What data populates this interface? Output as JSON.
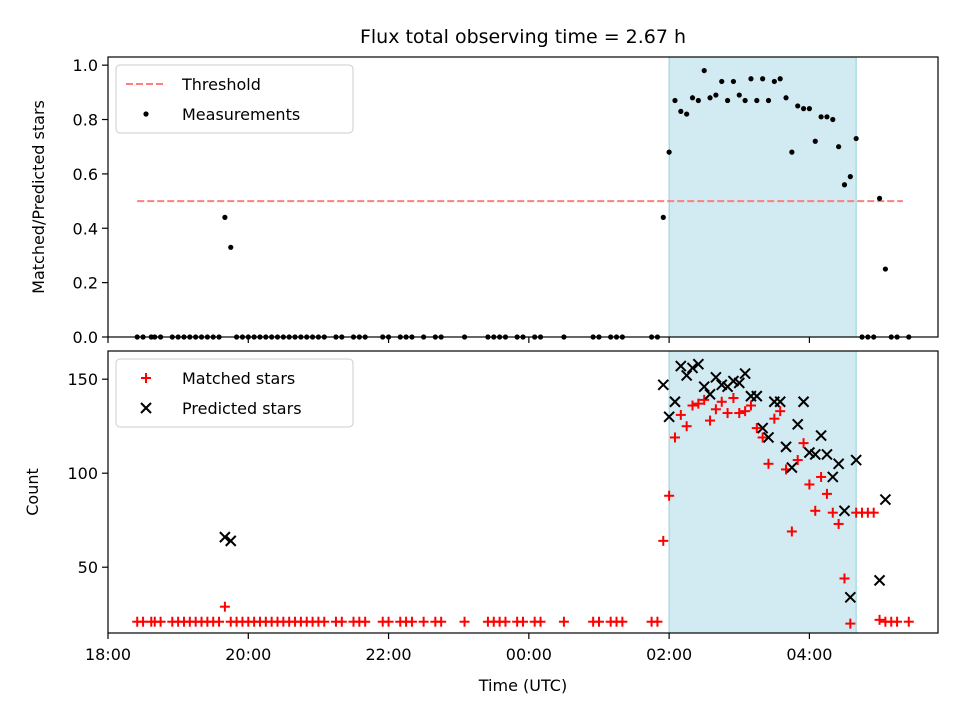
{
  "chart_data": [
    {
      "type": "scatter",
      "title": "Flux total observing time = 2.67 h",
      "ylabel": "Matched/Predicted stars",
      "xlabel": "",
      "xlim": [
        "18:00",
        "05:50"
      ],
      "ylim": [
        0,
        1.03
      ],
      "x_tick_labels": [],
      "y_ticks": [
        0.0,
        0.2,
        0.4,
        0.6,
        0.8,
        1.0
      ],
      "y_tick_labels": [
        "0.0",
        "0.2",
        "0.4",
        "0.6",
        "0.8",
        "1.0"
      ],
      "shaded_region": {
        "from": "02:00",
        "to": "04:40",
        "color": "#add8e6"
      },
      "legend": {
        "position": "upper-left",
        "entries": [
          "Threshold",
          "Measurements"
        ]
      },
      "threshold": {
        "name": "Threshold",
        "y": 0.5,
        "from": "18:25",
        "to": "05:20",
        "color": "#ff7f7f"
      },
      "series": [
        {
          "name": "Measurements",
          "color": "#000000",
          "points": [
            [
              "18:25",
              0
            ],
            [
              "18:30",
              0
            ],
            [
              "18:37",
              0
            ],
            [
              "18:40",
              0
            ],
            [
              "18:45",
              0
            ],
            [
              "18:55",
              0
            ],
            [
              "19:00",
              0
            ],
            [
              "19:05",
              0
            ],
            [
              "19:10",
              0
            ],
            [
              "19:15",
              0
            ],
            [
              "19:20",
              0
            ],
            [
              "19:25",
              0
            ],
            [
              "19:30",
              0
            ],
            [
              "19:35",
              0
            ],
            [
              "19:40",
              0.44
            ],
            [
              "19:45",
              0.33
            ],
            [
              "19:50",
              0
            ],
            [
              "19:55",
              0
            ],
            [
              "20:00",
              0
            ],
            [
              "20:05",
              0
            ],
            [
              "20:10",
              0
            ],
            [
              "20:15",
              0
            ],
            [
              "20:20",
              0
            ],
            [
              "20:25",
              0
            ],
            [
              "20:30",
              0
            ],
            [
              "20:35",
              0
            ],
            [
              "20:40",
              0
            ],
            [
              "20:45",
              0
            ],
            [
              "20:50",
              0
            ],
            [
              "20:55",
              0
            ],
            [
              "21:00",
              0
            ],
            [
              "21:05",
              0
            ],
            [
              "21:15",
              0
            ],
            [
              "21:20",
              0
            ],
            [
              "21:30",
              0
            ],
            [
              "21:35",
              0
            ],
            [
              "21:40",
              0
            ],
            [
              "21:55",
              0
            ],
            [
              "22:00",
              0
            ],
            [
              "22:10",
              0
            ],
            [
              "22:15",
              0
            ],
            [
              "22:20",
              0
            ],
            [
              "22:30",
              0
            ],
            [
              "22:40",
              0
            ],
            [
              "22:45",
              0
            ],
            [
              "23:05",
              0
            ],
            [
              "23:25",
              0
            ],
            [
              "23:30",
              0
            ],
            [
              "23:35",
              0
            ],
            [
              "23:40",
              0
            ],
            [
              "23:50",
              0
            ],
            [
              "23:55",
              0
            ],
            [
              "00:05",
              0
            ],
            [
              "00:10",
              0
            ],
            [
              "00:30",
              0
            ],
            [
              "00:55",
              0
            ],
            [
              "01:00",
              0
            ],
            [
              "01:10",
              0
            ],
            [
              "01:15",
              0
            ],
            [
              "01:20",
              0
            ],
            [
              "01:45",
              0
            ],
            [
              "01:50",
              0
            ],
            [
              "01:55",
              0.44
            ],
            [
              "02:00",
              0.68
            ],
            [
              "02:05",
              0.87
            ],
            [
              "02:10",
              0.83
            ],
            [
              "02:15",
              0.82
            ],
            [
              "02:20",
              0.88
            ],
            [
              "02:25",
              0.87
            ],
            [
              "02:30",
              0.98
            ],
            [
              "02:35",
              0.88
            ],
            [
              "02:40",
              0.89
            ],
            [
              "02:45",
              0.94
            ],
            [
              "02:50",
              0.87
            ],
            [
              "02:55",
              0.94
            ],
            [
              "03:00",
              0.89
            ],
            [
              "03:05",
              0.87
            ],
            [
              "03:10",
              0.95
            ],
            [
              "03:15",
              0.87
            ],
            [
              "03:20",
              0.95
            ],
            [
              "03:25",
              0.87
            ],
            [
              "03:30",
              0.94
            ],
            [
              "03:35",
              0.95
            ],
            [
              "03:40",
              0.88
            ],
            [
              "03:45",
              0.68
            ],
            [
              "03:50",
              0.85
            ],
            [
              "03:55",
              0.84
            ],
            [
              "04:00",
              0.84
            ],
            [
              "04:05",
              0.72
            ],
            [
              "04:10",
              0.81
            ],
            [
              "04:15",
              0.81
            ],
            [
              "04:20",
              0.8
            ],
            [
              "04:25",
              0.7
            ],
            [
              "04:30",
              0.56
            ],
            [
              "04:35",
              0.59
            ],
            [
              "04:40",
              0.73
            ],
            [
              "04:45",
              0
            ],
            [
              "04:50",
              0
            ],
            [
              "04:55",
              0
            ],
            [
              "05:00",
              0.51
            ],
            [
              "05:05",
              0.25
            ],
            [
              "05:10",
              0
            ],
            [
              "05:15",
              0
            ],
            [
              "05:25",
              0
            ]
          ]
        }
      ]
    },
    {
      "type": "scatter",
      "title": "",
      "ylabel": "Count",
      "xlabel": "Time (UTC)",
      "xlim": [
        "18:00",
        "05:50"
      ],
      "ylim": [
        15,
        165
      ],
      "x_tick_labels": [
        "18:00",
        "20:00",
        "22:00",
        "00:00",
        "02:00",
        "04:00"
      ],
      "y_ticks": [
        50,
        100,
        150
      ],
      "y_tick_labels": [
        "50",
        "100",
        "150"
      ],
      "shaded_region": {
        "from": "02:00",
        "to": "04:40",
        "color": "#add8e6"
      },
      "legend": {
        "position": "upper-left",
        "entries": [
          "Matched stars",
          "Predicted stars"
        ]
      },
      "series": [
        {
          "name": "Matched stars",
          "color": "#ff0000",
          "marker": "plus",
          "points": [
            [
              "18:25",
              21
            ],
            [
              "18:30",
              21
            ],
            [
              "18:37",
              21
            ],
            [
              "18:40",
              21
            ],
            [
              "18:45",
              21
            ],
            [
              "18:55",
              21
            ],
            [
              "19:00",
              21
            ],
            [
              "19:05",
              21
            ],
            [
              "19:10",
              21
            ],
            [
              "19:15",
              21
            ],
            [
              "19:20",
              21
            ],
            [
              "19:25",
              21
            ],
            [
              "19:30",
              21
            ],
            [
              "19:35",
              21
            ],
            [
              "19:40",
              29
            ],
            [
              "19:45",
              21
            ],
            [
              "19:50",
              21
            ],
            [
              "19:55",
              21
            ],
            [
              "20:00",
              21
            ],
            [
              "20:05",
              21
            ],
            [
              "20:10",
              21
            ],
            [
              "20:15",
              21
            ],
            [
              "20:20",
              21
            ],
            [
              "20:25",
              21
            ],
            [
              "20:30",
              21
            ],
            [
              "20:35",
              21
            ],
            [
              "20:40",
              21
            ],
            [
              "20:45",
              21
            ],
            [
              "20:50",
              21
            ],
            [
              "20:55",
              21
            ],
            [
              "21:00",
              21
            ],
            [
              "21:05",
              21
            ],
            [
              "21:15",
              21
            ],
            [
              "21:20",
              21
            ],
            [
              "21:30",
              21
            ],
            [
              "21:35",
              21
            ],
            [
              "21:40",
              21
            ],
            [
              "21:55",
              21
            ],
            [
              "22:00",
              21
            ],
            [
              "22:10",
              21
            ],
            [
              "22:15",
              21
            ],
            [
              "22:20",
              21
            ],
            [
              "22:30",
              21
            ],
            [
              "22:40",
              21
            ],
            [
              "22:45",
              21
            ],
            [
              "23:05",
              21
            ],
            [
              "23:25",
              21
            ],
            [
              "23:30",
              21
            ],
            [
              "23:35",
              21
            ],
            [
              "23:40",
              21
            ],
            [
              "23:50",
              21
            ],
            [
              "23:55",
              21
            ],
            [
              "00:05",
              21
            ],
            [
              "00:10",
              21
            ],
            [
              "00:30",
              21
            ],
            [
              "00:55",
              21
            ],
            [
              "01:00",
              21
            ],
            [
              "01:10",
              21
            ],
            [
              "01:15",
              21
            ],
            [
              "01:20",
              21
            ],
            [
              "01:45",
              21
            ],
            [
              "01:50",
              21
            ],
            [
              "01:55",
              64
            ],
            [
              "02:00",
              88
            ],
            [
              "02:05",
              119
            ],
            [
              "02:10",
              131
            ],
            [
              "02:15",
              125
            ],
            [
              "02:20",
              136
            ],
            [
              "02:25",
              137
            ],
            [
              "02:30",
              139
            ],
            [
              "02:35",
              128
            ],
            [
              "02:40",
              134
            ],
            [
              "02:45",
              138
            ],
            [
              "02:50",
              132
            ],
            [
              "02:55",
              140
            ],
            [
              "03:00",
              132
            ],
            [
              "03:05",
              133
            ],
            [
              "03:10",
              136
            ],
            [
              "03:15",
              124
            ],
            [
              "03:20",
              119
            ],
            [
              "03:25",
              105
            ],
            [
              "03:30",
              129
            ],
            [
              "03:35",
              133
            ],
            [
              "03:40",
              102
            ],
            [
              "03:45",
              69
            ],
            [
              "03:50",
              107
            ],
            [
              "03:55",
              116
            ],
            [
              "04:00",
              94
            ],
            [
              "04:05",
              80
            ],
            [
              "04:10",
              98
            ],
            [
              "04:15",
              89
            ],
            [
              "04:20",
              79
            ],
            [
              "04:25",
              73
            ],
            [
              "04:30",
              44
            ],
            [
              "04:35",
              20
            ],
            [
              "04:40",
              79
            ],
            [
              "04:45",
              79
            ],
            [
              "04:50",
              79
            ],
            [
              "04:55",
              79
            ],
            [
              "05:00",
              22
            ],
            [
              "05:05",
              21
            ],
            [
              "05:10",
              21
            ],
            [
              "05:15",
              21
            ],
            [
              "05:25",
              21
            ]
          ]
        },
        {
          "name": "Predicted stars",
          "color": "#000000",
          "marker": "x",
          "points": [
            [
              "19:40",
              66
            ],
            [
              "19:45",
              64
            ],
            [
              "01:55",
              147
            ],
            [
              "02:00",
              130
            ],
            [
              "02:05",
              138
            ],
            [
              "02:10",
              157
            ],
            [
              "02:15",
              152
            ],
            [
              "02:20",
              156
            ],
            [
              "02:25",
              158
            ],
            [
              "02:30",
              146
            ],
            [
              "02:35",
              142
            ],
            [
              "02:40",
              151
            ],
            [
              "02:45",
              147
            ],
            [
              "02:50",
              146
            ],
            [
              "02:55",
              149
            ],
            [
              "03:00",
              148
            ],
            [
              "03:05",
              153
            ],
            [
              "03:10",
              141
            ],
            [
              "03:15",
              141
            ],
            [
              "03:20",
              124
            ],
            [
              "03:25",
              119
            ],
            [
              "03:30",
              138
            ],
            [
              "03:35",
              138
            ],
            [
              "03:40",
              114
            ],
            [
              "03:45",
              103
            ],
            [
              "03:50",
              126
            ],
            [
              "03:55",
              138
            ],
            [
              "04:00",
              111
            ],
            [
              "04:05",
              110
            ],
            [
              "04:10",
              120
            ],
            [
              "04:15",
              110
            ],
            [
              "04:20",
              98
            ],
            [
              "04:25",
              105
            ],
            [
              "04:30",
              80
            ],
            [
              "04:35",
              34
            ],
            [
              "04:40",
              107
            ],
            [
              "05:00",
              43
            ],
            [
              "05:05",
              86
            ]
          ]
        }
      ]
    }
  ]
}
